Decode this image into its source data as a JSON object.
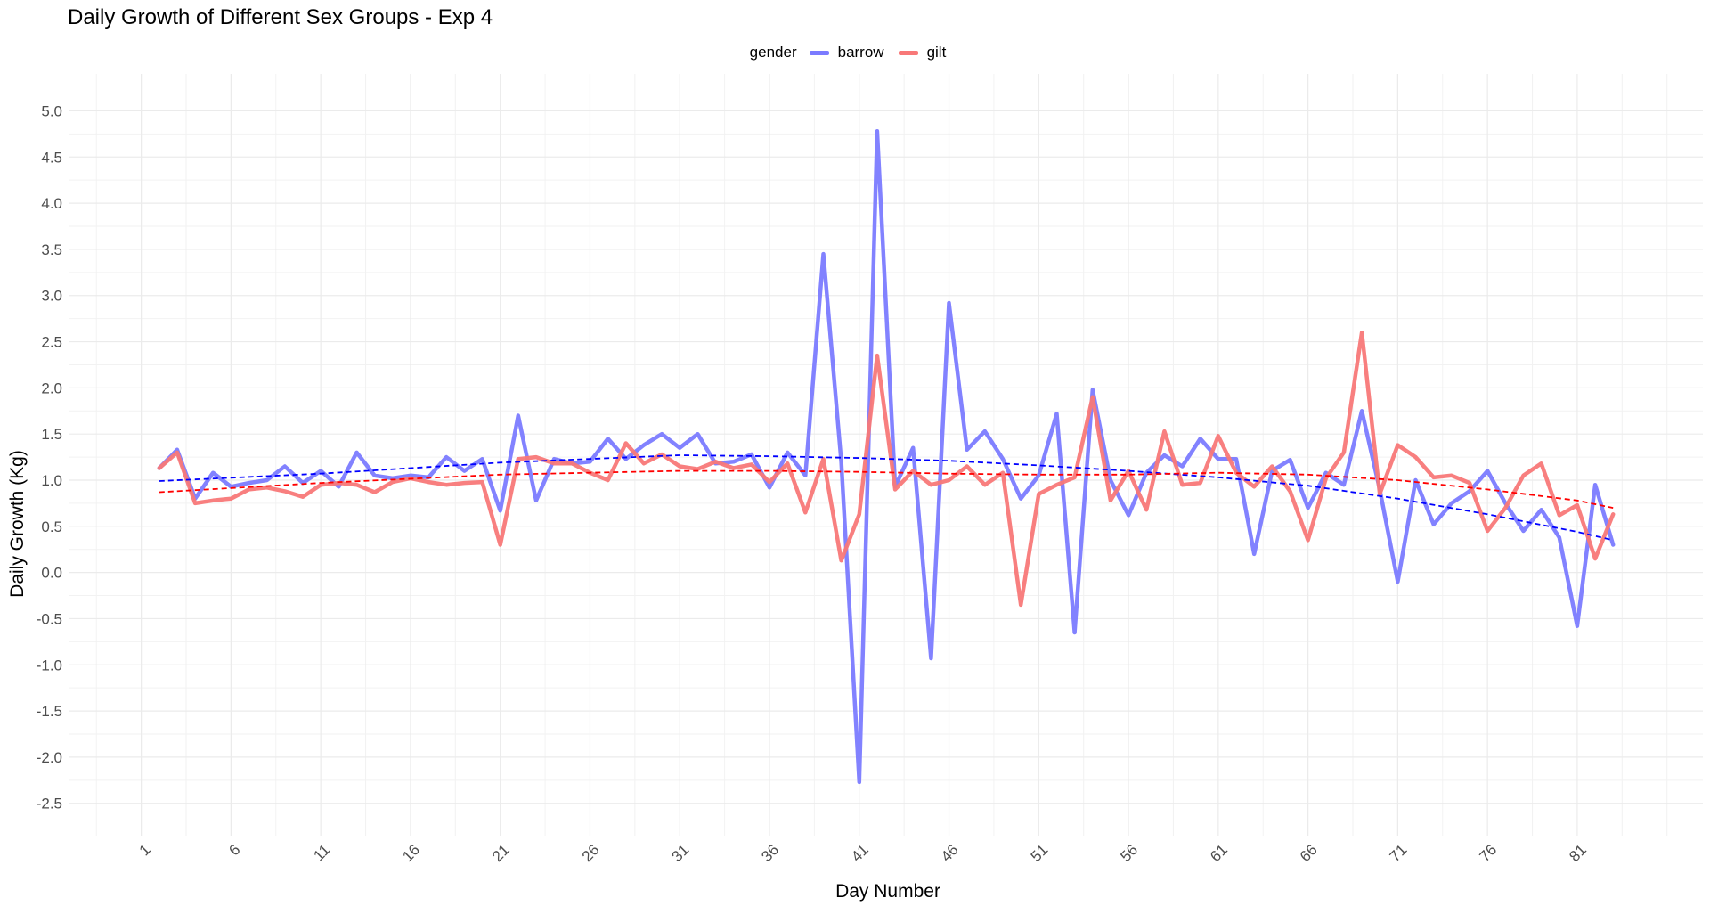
{
  "chart_data": {
    "type": "line",
    "title": "Daily Growth of Different Sex Groups - Exp 4",
    "xlabel": "Day Number",
    "ylabel": "Daily Growth (Kg)",
    "xlim": [
      -3,
      88
    ],
    "ylim": [
      -2.85,
      5.4
    ],
    "x_ticks": [
      1,
      6,
      11,
      16,
      21,
      26,
      31,
      36,
      41,
      46,
      51,
      56,
      61,
      66,
      71,
      76,
      81
    ],
    "x_tick_labels": [
      "1",
      "6",
      "11",
      "16",
      "21",
      "26",
      "31",
      "36",
      "41",
      "46",
      "51",
      "56",
      "61",
      "66",
      "71",
      "76",
      "81"
    ],
    "y_ticks": [
      -2.5,
      -2.0,
      -1.5,
      -1.0,
      -0.5,
      0.0,
      0.5,
      1.0,
      1.5,
      2.0,
      2.5,
      3.0,
      3.5,
      4.0,
      4.5,
      5.0
    ],
    "y_tick_labels": [
      "-2.5",
      "-2.0",
      "-1.5",
      "-1.0",
      "-0.5",
      "0.0",
      "0.5",
      "1.0",
      "1.5",
      "2.0",
      "2.5",
      "3.0",
      "3.5",
      "4.0",
      "4.5",
      "5.0"
    ],
    "grid": true,
    "legend": {
      "title": "gender",
      "position": "top"
    },
    "x": [
      2,
      3,
      4,
      5,
      6,
      7,
      8,
      9,
      10,
      11,
      12,
      13,
      14,
      15,
      16,
      17,
      18,
      19,
      20,
      21,
      22,
      23,
      24,
      25,
      26,
      27,
      28,
      29,
      30,
      31,
      32,
      33,
      34,
      35,
      36,
      37,
      38,
      39,
      40,
      41,
      42,
      43,
      44,
      45,
      46,
      47,
      48,
      49,
      50,
      51,
      52,
      53,
      54,
      55,
      56,
      57,
      58,
      59,
      60,
      61,
      62,
      63,
      64,
      65,
      66,
      67,
      68,
      69,
      70,
      71,
      72,
      73,
      74,
      75,
      76,
      77,
      78,
      79,
      80,
      81,
      82,
      83
    ],
    "series": [
      {
        "name": "barrow",
        "color": "#7b7bff",
        "values": [
          1.13,
          1.33,
          0.8,
          1.08,
          0.93,
          0.97,
          1.0,
          1.15,
          0.97,
          1.1,
          0.93,
          1.3,
          1.05,
          1.02,
          1.05,
          1.03,
          1.25,
          1.1,
          1.23,
          0.67,
          1.7,
          0.78,
          1.23,
          1.18,
          1.2,
          1.45,
          1.23,
          1.38,
          1.5,
          1.35,
          1.5,
          1.18,
          1.2,
          1.28,
          0.92,
          1.3,
          1.05,
          3.45,
          1.2,
          -2.27,
          4.78,
          0.93,
          1.35,
          -0.93,
          2.92,
          1.33,
          1.53,
          1.23,
          0.8,
          1.05,
          1.72,
          -0.65,
          1.98,
          1.0,
          0.62,
          1.08,
          1.27,
          1.15,
          1.45,
          1.23,
          1.23,
          0.2,
          1.1,
          1.22,
          0.7,
          1.08,
          0.95,
          1.75,
          0.9,
          -0.1,
          1.0,
          0.52,
          0.75,
          0.88,
          1.1,
          0.75,
          0.45,
          0.68,
          0.38,
          -0.58,
          0.95,
          0.3
        ]
      },
      {
        "name": "gilt",
        "color": "#f87878",
        "values": [
          1.13,
          1.3,
          0.75,
          0.78,
          0.8,
          0.9,
          0.92,
          0.88,
          0.82,
          0.95,
          0.97,
          0.95,
          0.87,
          0.98,
          1.02,
          0.98,
          0.95,
          0.97,
          0.98,
          0.3,
          1.23,
          1.25,
          1.18,
          1.18,
          1.08,
          1.0,
          1.4,
          1.18,
          1.28,
          1.15,
          1.12,
          1.2,
          1.13,
          1.17,
          0.98,
          1.18,
          0.65,
          1.23,
          0.13,
          0.63,
          2.35,
          0.9,
          1.1,
          0.95,
          1.0,
          1.15,
          0.95,
          1.08,
          -0.35,
          0.85,
          0.95,
          1.03,
          1.9,
          0.78,
          1.1,
          0.68,
          1.53,
          0.95,
          0.97,
          1.48,
          1.08,
          0.93,
          1.15,
          0.88,
          0.35,
          1.02,
          1.3,
          2.6,
          0.85,
          1.38,
          1.25,
          1.03,
          1.05,
          0.97,
          0.45,
          0.7,
          1.05,
          1.18,
          0.62,
          0.73,
          0.15,
          0.63
        ]
      }
    ],
    "trend_lines": [
      {
        "name": "barrow",
        "color": "#0000ff",
        "style": "dashed",
        "x": [
          2,
          11,
          21,
          31,
          36,
          41,
          46,
          51,
          56,
          61,
          66,
          71,
          76,
          81,
          83
        ],
        "values": [
          0.99,
          1.07,
          1.19,
          1.27,
          1.26,
          1.24,
          1.21,
          1.16,
          1.1,
          1.03,
          0.94,
          0.8,
          0.63,
          0.44,
          0.35
        ]
      },
      {
        "name": "gilt",
        "color": "#ff0000",
        "style": "dashed",
        "x": [
          2,
          11,
          21,
          31,
          36,
          41,
          46,
          51,
          56,
          61,
          66,
          71,
          76,
          81,
          83
        ],
        "values": [
          0.87,
          0.97,
          1.06,
          1.1,
          1.1,
          1.09,
          1.07,
          1.06,
          1.06,
          1.08,
          1.06,
          1.0,
          0.9,
          0.78,
          0.7
        ]
      }
    ]
  }
}
